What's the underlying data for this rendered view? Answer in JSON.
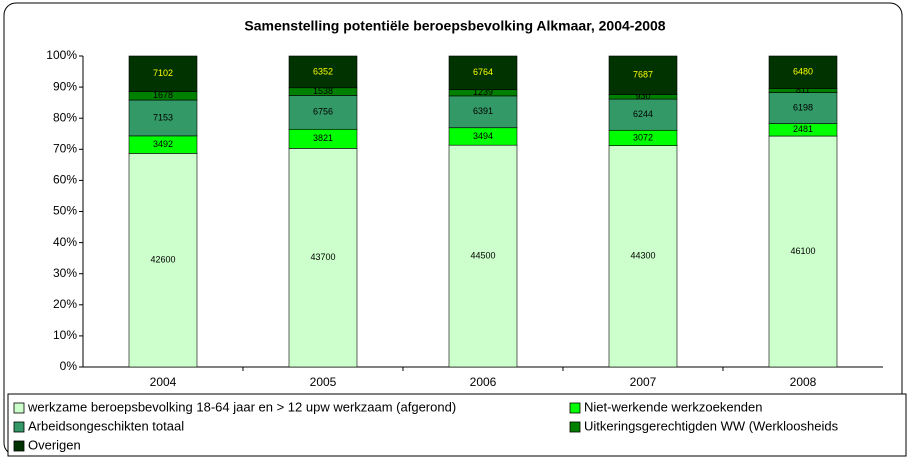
{
  "chart_data": {
    "type": "bar",
    "stacked_percent": true,
    "title": "Samenstelling potentiële beroepsbevolking Alkmaar, 2004-2008",
    "categories": [
      "2004",
      "2005",
      "2006",
      "2007",
      "2008"
    ],
    "series": [
      {
        "name": "werkzame beroepsbevolking 18-64 jaar en > 12 upw werkzaam (afgerond)",
        "color": "#ccffcc",
        "label_color": "#000000",
        "values": [
          42600,
          43700,
          44500,
          44300,
          46100
        ]
      },
      {
        "name": "Niet-werkende werkzoekenden",
        "color": "#00ff00",
        "label_color": "#000000",
        "values": [
          3492,
          3821,
          3494,
          3072,
          2481
        ]
      },
      {
        "name": "Arbeidsongeschikten totaal",
        "color": "#339966",
        "label_color": "#000000",
        "values": [
          7153,
          6756,
          6391,
          6244,
          6198
        ]
      },
      {
        "name": "Uitkeringsgerechtigden WW (Werkloosheids",
        "color": "#008000",
        "label_color": "#000000",
        "values": [
          1678,
          1538,
          1239,
          930,
          811
        ]
      },
      {
        "name": "Overigen",
        "color": "#003300",
        "label_color": "#ffff00",
        "values": [
          7102,
          6352,
          6764,
          7687,
          6480
        ]
      }
    ],
    "ylim": [
      0,
      100
    ],
    "yticks": [
      {
        "value": 0,
        "label": "0%"
      },
      {
        "value": 10,
        "label": "10%"
      },
      {
        "value": 20,
        "label": "20%"
      },
      {
        "value": 30,
        "label": "30%"
      },
      {
        "value": 40,
        "label": "40%"
      },
      {
        "value": 50,
        "label": "50%"
      },
      {
        "value": 60,
        "label": "60%"
      },
      {
        "value": 70,
        "label": "70%"
      },
      {
        "value": 80,
        "label": "80%"
      },
      {
        "value": 90,
        "label": "90%"
      },
      {
        "value": 100,
        "label": "100%"
      }
    ],
    "grid": false
  }
}
